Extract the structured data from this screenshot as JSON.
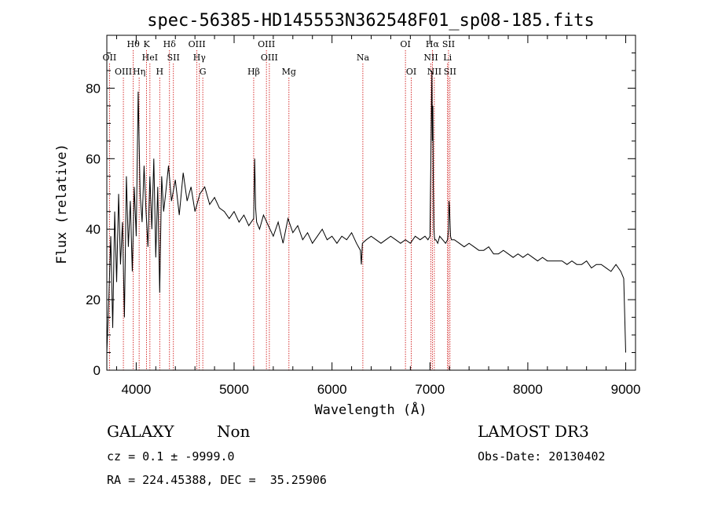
{
  "chart_data": {
    "type": "line",
    "title": "spec-56385-HD145553N362548F01_sp08-185.fits",
    "xlabel": "Wavelength (Å)",
    "ylabel": "Flux (relative)",
    "xlim": [
      3700,
      9100
    ],
    "ylim": [
      0,
      95
    ],
    "x_ticks": [
      4000,
      5000,
      6000,
      7000,
      8000,
      9000
    ],
    "y_ticks": [
      0,
      20,
      40,
      60,
      80
    ],
    "series": [
      {
        "name": "flux",
        "x": [
          3700,
          3720,
          3740,
          3760,
          3780,
          3800,
          3820,
          3840,
          3860,
          3880,
          3900,
          3920,
          3940,
          3960,
          3980,
          4000,
          4020,
          4040,
          4060,
          4080,
          4100,
          4120,
          4140,
          4160,
          4180,
          4200,
          4220,
          4240,
          4260,
          4280,
          4300,
          4330,
          4360,
          4400,
          4440,
          4480,
          4520,
          4560,
          4600,
          4650,
          4700,
          4750,
          4800,
          4850,
          4900,
          4950,
          5000,
          5050,
          5100,
          5150,
          5200,
          5210,
          5220,
          5230,
          5260,
          5300,
          5350,
          5400,
          5450,
          5500,
          5550,
          5600,
          5650,
          5700,
          5750,
          5800,
          5850,
          5900,
          5950,
          6000,
          6050,
          6100,
          6150,
          6200,
          6250,
          6290,
          6300,
          6310,
          6350,
          6400,
          6450,
          6500,
          6550,
          6600,
          6650,
          6700,
          6750,
          6800,
          6850,
          6900,
          6950,
          6980,
          7000,
          7010,
          7020,
          7025,
          7030,
          7035,
          7040,
          7045,
          7050,
          7060,
          7080,
          7100,
          7130,
          7160,
          7180,
          7190,
          7195,
          7200,
          7210,
          7220,
          7250,
          7300,
          7350,
          7400,
          7450,
          7500,
          7550,
          7600,
          7650,
          7700,
          7750,
          7800,
          7850,
          7900,
          7950,
          8000,
          8050,
          8100,
          8150,
          8200,
          8250,
          8300,
          8350,
          8400,
          8450,
          8500,
          8550,
          8600,
          8650,
          8700,
          8750,
          8800,
          8850,
          8900,
          8950,
          8980,
          9000
        ],
        "y": [
          5,
          20,
          38,
          12,
          45,
          25,
          50,
          30,
          42,
          15,
          55,
          35,
          48,
          28,
          52,
          38,
          79,
          50,
          42,
          58,
          45,
          35,
          55,
          40,
          60,
          32,
          52,
          22,
          55,
          45,
          50,
          58,
          48,
          54,
          44,
          56,
          48,
          52,
          45,
          50,
          52,
          47,
          49,
          46,
          45,
          43,
          45,
          42,
          44,
          41,
          43,
          60,
          46,
          42,
          40,
          44,
          41,
          38,
          42,
          36,
          43,
          39,
          41,
          37,
          39,
          36,
          38,
          40,
          37,
          38,
          36,
          38,
          37,
          39,
          36,
          34,
          30,
          36,
          37,
          38,
          37,
          36,
          37,
          38,
          37,
          36,
          37,
          36,
          38,
          37,
          38,
          37,
          38,
          60,
          85,
          65,
          75,
          52,
          40,
          38,
          37,
          37,
          36,
          38,
          37,
          36,
          37,
          40,
          48,
          46,
          38,
          37,
          37,
          36,
          35,
          36,
          35,
          34,
          34,
          35,
          33,
          33,
          34,
          33,
          32,
          33,
          32,
          33,
          32,
          31,
          32,
          31,
          31,
          31,
          31,
          30,
          31,
          30,
          30,
          31,
          29,
          30,
          30,
          29,
          28,
          30,
          28,
          26,
          5
        ]
      }
    ],
    "spectral_lines": [
      {
        "label": "OII",
        "wavelength": 3727,
        "row": 2
      },
      {
        "label": "OIII",
        "wavelength": 3869,
        "row": 3
      },
      {
        "label": "Hθ",
        "wavelength": 3970,
        "row": 1
      },
      {
        "label": "Hη",
        "wavelength": 4030,
        "row": 3
      },
      {
        "label": "K",
        "wavelength": 4106,
        "row": 1
      },
      {
        "label": "HeI",
        "wavelength": 4140,
        "row": 2
      },
      {
        "label": "H",
        "wavelength": 4240,
        "row": 3
      },
      {
        "label": "Hδ",
        "wavelength": 4340,
        "row": 1
      },
      {
        "label": "SII",
        "wavelength": 4380,
        "row": 2
      },
      {
        "label": "OIII",
        "wavelength": 4620,
        "row": 1
      },
      {
        "label": "Hγ",
        "wavelength": 4645,
        "row": 2
      },
      {
        "label": "G",
        "wavelength": 4680,
        "row": 3
      },
      {
        "label": "Hβ",
        "wavelength": 5200,
        "row": 3
      },
      {
        "label": "OIII",
        "wavelength": 5330,
        "row": 1
      },
      {
        "label": "OIII",
        "wavelength": 5360,
        "row": 2
      },
      {
        "label": "Mg",
        "wavelength": 5560,
        "row": 3
      },
      {
        "label": "Na",
        "wavelength": 6315,
        "row": 2
      },
      {
        "label": "OI",
        "wavelength": 6750,
        "row": 1
      },
      {
        "label": "OI",
        "wavelength": 6810,
        "row": 3
      },
      {
        "label": "Hα",
        "wavelength": 7025,
        "row": 1
      },
      {
        "label": "NII",
        "wavelength": 7010,
        "row": 2
      },
      {
        "label": "NII",
        "wavelength": 7045,
        "row": 3
      },
      {
        "label": "SII",
        "wavelength": 7190,
        "row": 1
      },
      {
        "label": "Li",
        "wavelength": 7180,
        "row": 2
      },
      {
        "label": "SII",
        "wavelength": 7205,
        "row": 3
      }
    ]
  },
  "info": {
    "class": "GALAXY",
    "subclass": "Non",
    "survey": "LAMOST DR3",
    "cz": "cz = 0.1 ± -9999.0",
    "obs_date": "Obs-Date: 20130402",
    "coords": "RA = 224.45388, DEC =  35.25906"
  },
  "colors": {
    "line": "#000000",
    "marker": "#cc0000"
  }
}
